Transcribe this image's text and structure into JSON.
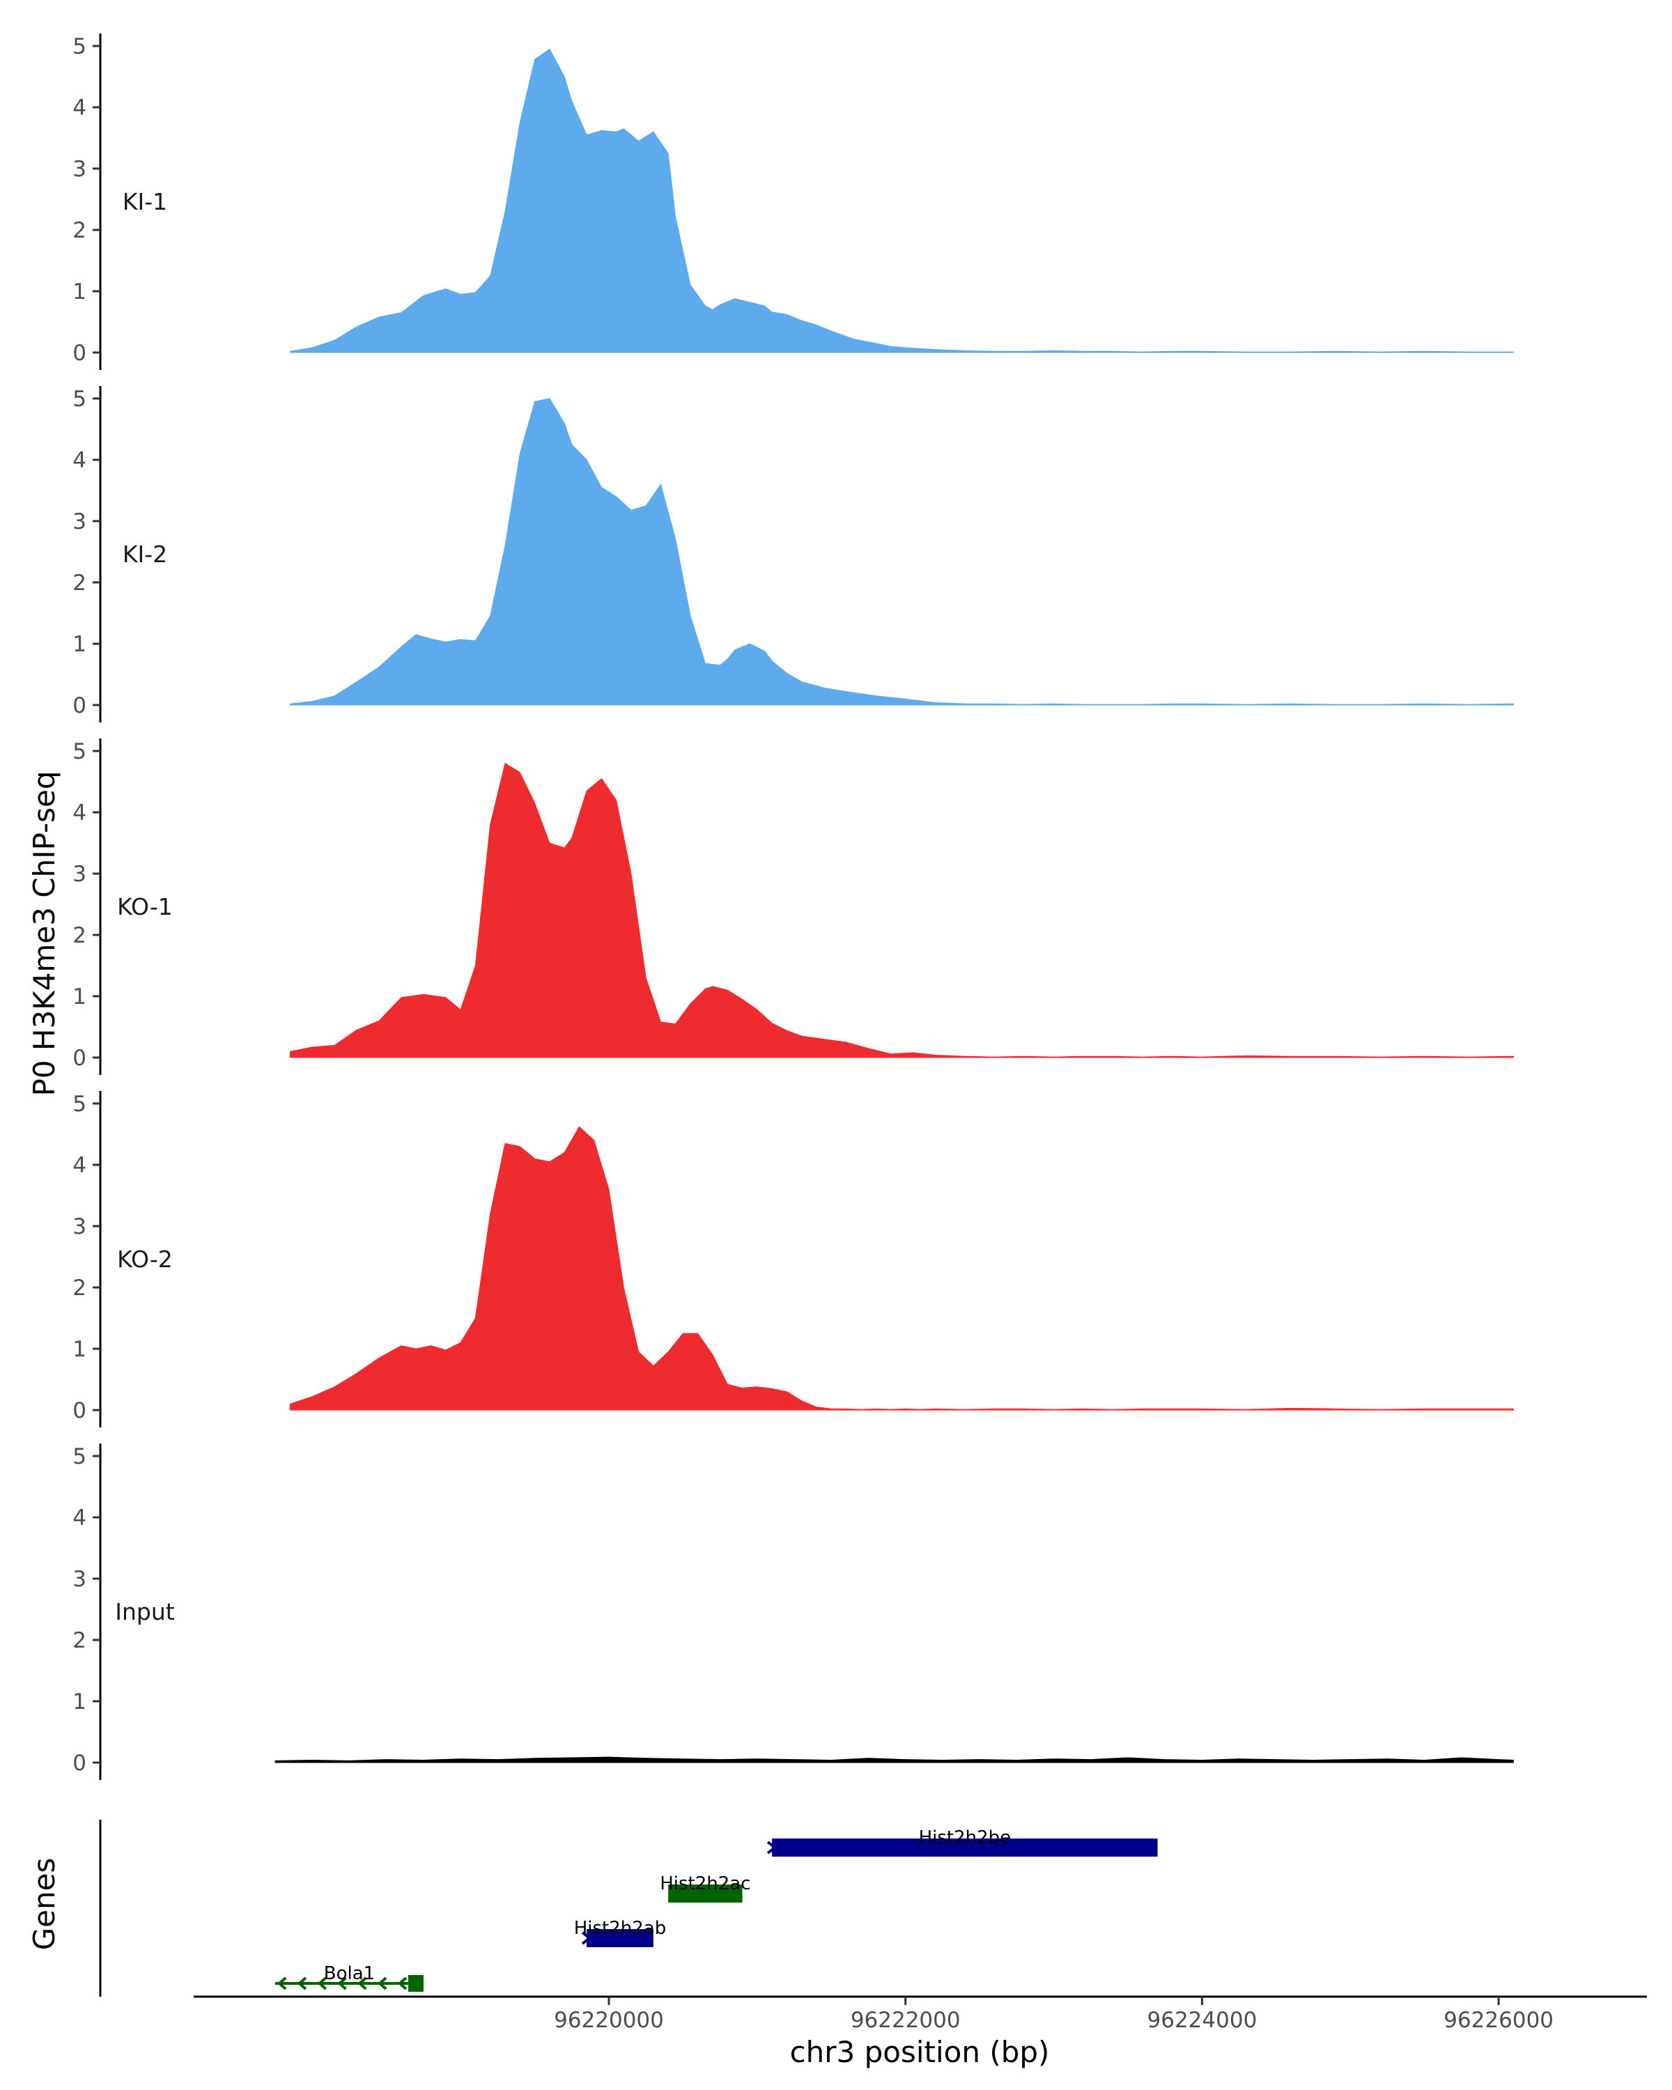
{
  "chart_data": {
    "type": "area",
    "chromosome": "chr3",
    "xlabel": "chr3 position (bp)",
    "ylabel": "P0 H3K4me3 ChIP-seq",
    "genes_label": "Genes",
    "xlim": [
      96217200,
      96227000
    ],
    "ylim": [
      0,
      5
    ],
    "yticks": [
      0,
      1,
      2,
      3,
      4,
      5
    ],
    "xticks": [
      96220000,
      96222000,
      96224000,
      96226000
    ],
    "xtick_labels": [
      "96220000",
      "96222000",
      "96224000",
      "96226000"
    ],
    "colors": {
      "KI": "#5dabec",
      "KO": "#ee2b2e",
      "Input": "#000000",
      "gene_plus": "#00008b",
      "gene_minus": "#006400"
    },
    "series": [
      {
        "name": "KI-1",
        "color": "#5dabec",
        "x": [
          96217850,
          96218000,
          96218150,
          96218300,
          96218450,
          96218600,
          96218750,
          96218900,
          96219000,
          96219100,
          96219200,
          96219300,
          96219400,
          96219500,
          96219600,
          96219700,
          96219750,
          96219850,
          96219950,
          96220050,
          96220100,
          96220200,
          96220300,
          96220400,
          96220450,
          96220550,
          96220650,
          96220700,
          96220750,
          96220850,
          96220950,
          96221050,
          96221100,
          96221200,
          96221300,
          96221400,
          96221500,
          96221650,
          96221800,
          96221900,
          96222000,
          96222200,
          96222400,
          96222600,
          96222800,
          96223000,
          96223200,
          96223400,
          96223600,
          96223800,
          96224000,
          96224300,
          96224600,
          96224900,
          96225200,
          96225500,
          96225800,
          96226100
        ],
        "values": [
          0.02,
          0.08,
          0.2,
          0.42,
          0.58,
          0.65,
          0.93,
          1.04,
          0.95,
          0.98,
          1.25,
          2.3,
          3.75,
          4.78,
          4.95,
          4.5,
          4.1,
          3.55,
          3.62,
          3.6,
          3.65,
          3.45,
          3.6,
          3.25,
          2.2,
          1.1,
          0.76,
          0.7,
          0.78,
          0.88,
          0.82,
          0.76,
          0.66,
          0.62,
          0.52,
          0.45,
          0.35,
          0.22,
          0.15,
          0.1,
          0.08,
          0.05,
          0.03,
          0.02,
          0.02,
          0.03,
          0.02,
          0.02,
          0.01,
          0.02,
          0.02,
          0.01,
          0.01,
          0.02,
          0.01,
          0.02,
          0.01,
          0.01
        ]
      },
      {
        "name": "KI-2",
        "color": "#5dabec",
        "x": [
          96217850,
          96218000,
          96218150,
          96218300,
          96218450,
          96218600,
          96218700,
          96218800,
          96218900,
          96219000,
          96219100,
          96219200,
          96219300,
          96219400,
          96219500,
          96219600,
          96219700,
          96219750,
          96219850,
          96219950,
          96220050,
          96220150,
          96220250,
          96220350,
          96220450,
          96220550,
          96220650,
          96220750,
          96220800,
          96220850,
          96220950,
          96221050,
          96221100,
          96221200,
          96221300,
          96221450,
          96221600,
          96221800,
          96222000,
          96222200,
          96222400,
          96222600,
          96222800,
          96223000,
          96223200,
          96223400,
          96223600,
          96223800,
          96224000,
          96224300,
          96224600,
          96224900,
          96225200,
          96225500,
          96225800,
          96226100
        ],
        "values": [
          0.02,
          0.06,
          0.15,
          0.38,
          0.62,
          0.95,
          1.15,
          1.08,
          1.03,
          1.07,
          1.05,
          1.45,
          2.6,
          4.1,
          4.95,
          5.0,
          4.6,
          4.25,
          4.0,
          3.55,
          3.4,
          3.18,
          3.25,
          3.6,
          2.7,
          1.45,
          0.68,
          0.65,
          0.75,
          0.9,
          1.0,
          0.88,
          0.72,
          0.52,
          0.38,
          0.28,
          0.22,
          0.15,
          0.1,
          0.04,
          0.02,
          0.02,
          0.01,
          0.02,
          0.01,
          0.01,
          0.01,
          0.02,
          0.02,
          0.01,
          0.02,
          0.01,
          0.01,
          0.02,
          0.01,
          0.02
        ]
      },
      {
        "name": "KO-1",
        "color": "#ee2b2e",
        "x": [
          96217850,
          96218000,
          96218150,
          96218300,
          96218450,
          96218600,
          96218750,
          96218900,
          96219000,
          96219100,
          96219200,
          96219300,
          96219400,
          96219500,
          96219600,
          96219700,
          96219750,
          96219850,
          96219950,
          96220050,
          96220150,
          96220250,
          96220350,
          96220450,
          96220550,
          96220650,
          96220700,
          96220800,
          96220900,
          96221000,
          96221100,
          96221200,
          96221300,
          96221450,
          96221600,
          96221750,
          96221900,
          96222050,
          96222200,
          96222400,
          96222600,
          96222800,
          96223000,
          96223200,
          96223400,
          96223600,
          96223800,
          96224000,
          96224300,
          96224600,
          96224900,
          96225200,
          96225500,
          96225800,
          96226100
        ],
        "values": [
          0.1,
          0.17,
          0.2,
          0.45,
          0.6,
          0.98,
          1.03,
          0.98,
          0.78,
          1.5,
          3.8,
          4.8,
          4.65,
          4.15,
          3.5,
          3.42,
          3.58,
          4.35,
          4.55,
          4.2,
          3.0,
          1.3,
          0.58,
          0.55,
          0.88,
          1.12,
          1.16,
          1.1,
          0.95,
          0.78,
          0.56,
          0.44,
          0.35,
          0.3,
          0.25,
          0.15,
          0.06,
          0.08,
          0.04,
          0.02,
          0.01,
          0.02,
          0.01,
          0.02,
          0.02,
          0.01,
          0.02,
          0.01,
          0.03,
          0.02,
          0.02,
          0.01,
          0.02,
          0.01,
          0.02
        ]
      },
      {
        "name": "KO-2",
        "color": "#ee2b2e",
        "x": [
          96217850,
          96218000,
          96218150,
          96218300,
          96218450,
          96218600,
          96218700,
          96218800,
          96218900,
          96219000,
          96219100,
          96219200,
          96219300,
          96219400,
          96219500,
          96219600,
          96219700,
          96219800,
          96219900,
          96220000,
          96220100,
          96220200,
          96220300,
          96220400,
          96220500,
          96220600,
          96220700,
          96220800,
          96220900,
          96221000,
          96221100,
          96221200,
          96221300,
          96221400,
          96221500,
          96221600,
          96221700,
          96221800,
          96221900,
          96222000,
          96222100,
          96222200,
          96222400,
          96222600,
          96222800,
          96223000,
          96223200,
          96223400,
          96223600,
          96223800,
          96224000,
          96224300,
          96224600,
          96224900,
          96225200,
          96225500,
          96225800,
          96226100
        ],
        "values": [
          0.1,
          0.22,
          0.38,
          0.6,
          0.85,
          1.05,
          1.0,
          1.05,
          0.98,
          1.1,
          1.5,
          3.2,
          4.35,
          4.3,
          4.1,
          4.05,
          4.2,
          4.62,
          4.4,
          3.6,
          2.0,
          0.95,
          0.72,
          0.95,
          1.25,
          1.25,
          0.9,
          0.42,
          0.36,
          0.38,
          0.35,
          0.3,
          0.15,
          0.05,
          0.02,
          0.02,
          0.01,
          0.02,
          0.01,
          0.02,
          0.01,
          0.02,
          0.01,
          0.02,
          0.02,
          0.01,
          0.02,
          0.01,
          0.02,
          0.02,
          0.02,
          0.01,
          0.03,
          0.02,
          0.01,
          0.02,
          0.02,
          0.02
        ]
      },
      {
        "name": "Input",
        "color": "#000000",
        "x": [
          96217750,
          96218000,
          96218250,
          96218500,
          96218750,
          96219000,
          96219250,
          96219500,
          96219750,
          96220000,
          96220250,
          96220500,
          96220750,
          96221000,
          96221250,
          96221500,
          96221750,
          96222000,
          96222250,
          96222500,
          96222750,
          96223000,
          96223250,
          96223500,
          96223750,
          96224000,
          96224250,
          96224500,
          96224750,
          96225000,
          96225250,
          96225500,
          96225750,
          96226000,
          96226100
        ],
        "values": [
          0.03,
          0.04,
          0.03,
          0.05,
          0.04,
          0.06,
          0.05,
          0.07,
          0.08,
          0.09,
          0.07,
          0.06,
          0.05,
          0.06,
          0.05,
          0.04,
          0.07,
          0.05,
          0.04,
          0.05,
          0.04,
          0.06,
          0.05,
          0.08,
          0.05,
          0.04,
          0.06,
          0.05,
          0.04,
          0.05,
          0.06,
          0.04,
          0.08,
          0.05,
          0.04
        ]
      }
    ],
    "genes": [
      {
        "name": "Hist2h2be",
        "start": 96221100,
        "end": 96223700,
        "strand": "+",
        "row": 4,
        "color": "#00008b"
      },
      {
        "name": "Hist2h2ac",
        "start": 96220400,
        "end": 96220900,
        "strand": "-",
        "row": 3,
        "color": "#006400"
      },
      {
        "name": "Hist2h2ab",
        "start": 96219850,
        "end": 96220300,
        "strand": "+",
        "row": 2,
        "color": "#00008b"
      },
      {
        "name": "Bola1",
        "start": 96217750,
        "end": 96218750,
        "strand": "-",
        "row": 1,
        "color": "#006400"
      }
    ]
  }
}
